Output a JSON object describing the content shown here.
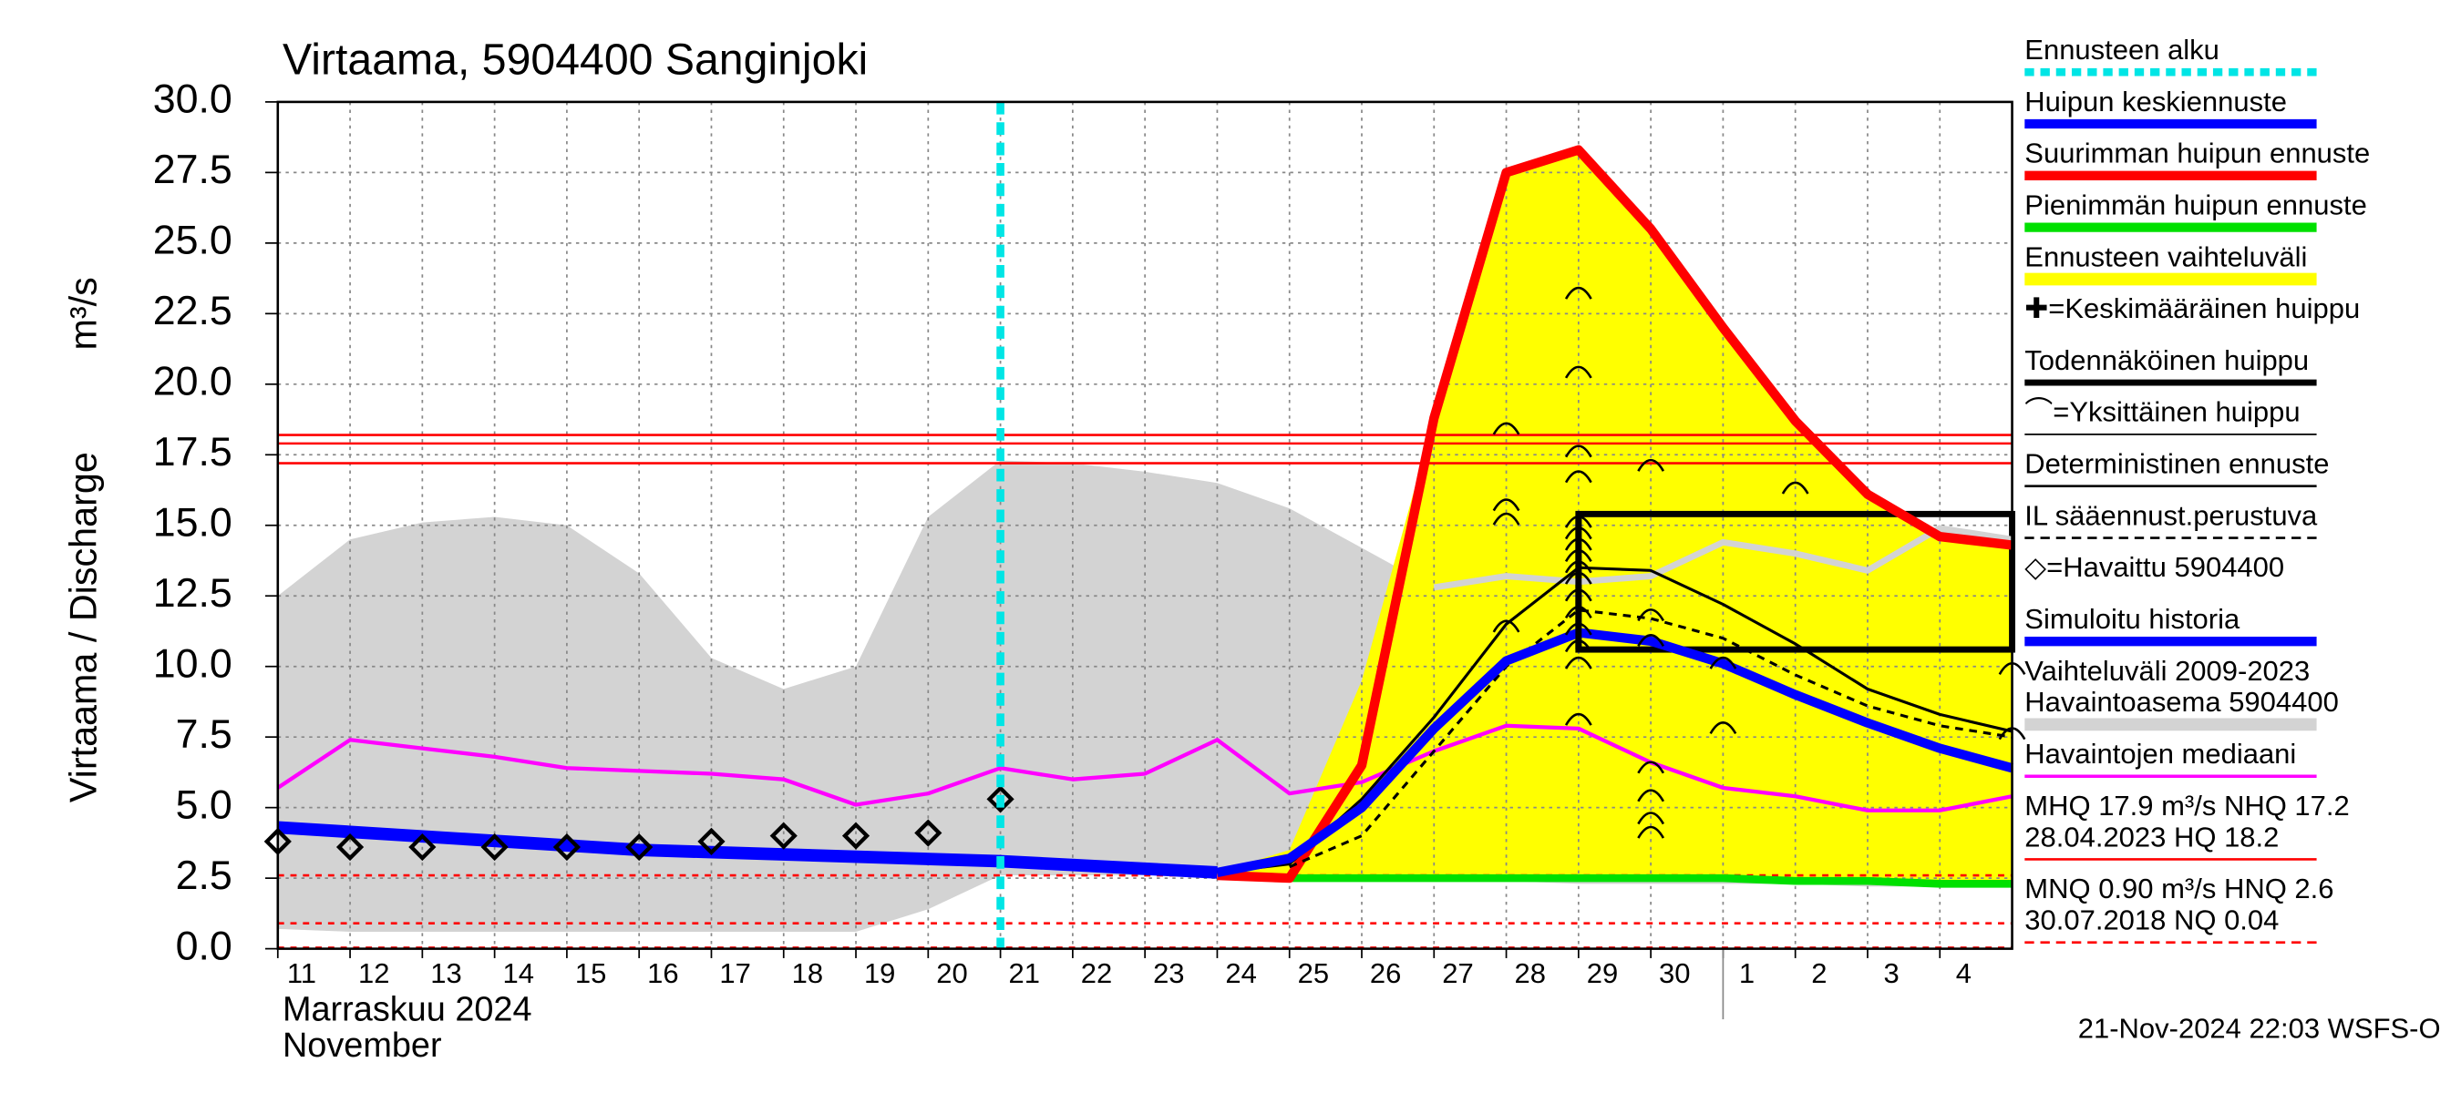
{
  "chart_data": {
    "type": "line",
    "title": "Virtaama, 5904400 Sanginjoki",
    "ylabel": "Virtaama / Discharge",
    "yunit": "m³/s",
    "month_fi": "Marraskuu 2024",
    "month_en": "November",
    "footer": "21-Nov-2024 22:03 WSFS-O",
    "xlim": [
      0,
      24
    ],
    "ylim": [
      0,
      30
    ],
    "grid": true,
    "yticks": [
      {
        "value": 0,
        "label": "0.0"
      },
      2.5,
      {
        "value": 5,
        "label": "5.0"
      },
      7.5,
      {
        "value": 10,
        "label": "10.0"
      },
      12.5,
      {
        "value": 15,
        "label": "15.0"
      },
      17.5,
      {
        "value": 20,
        "label": "20.0"
      },
      22.5,
      {
        "value": 25,
        "label": "25.0"
      },
      27.5,
      {
        "value": 30,
        "label": "30.0"
      }
    ],
    "xticks": [
      {
        "value": 0,
        "label": "11"
      },
      {
        "value": 1,
        "label": "12"
      },
      {
        "value": 2,
        "label": "13"
      },
      {
        "value": 3,
        "label": "14"
      },
      {
        "value": 4,
        "label": "15"
      },
      {
        "value": 5,
        "label": "16"
      },
      {
        "value": 6,
        "label": "17"
      },
      {
        "value": 7,
        "label": "18"
      },
      {
        "value": 8,
        "label": "19"
      },
      {
        "value": 9,
        "label": "20"
      },
      {
        "value": 10,
        "label": "21"
      },
      {
        "value": 11,
        "label": "22"
      },
      {
        "value": 12,
        "label": "23"
      },
      {
        "value": 13,
        "label": "24"
      },
      {
        "value": 14,
        "label": "25"
      },
      {
        "value": 15,
        "label": "26"
      },
      {
        "value": 16,
        "label": "27"
      },
      {
        "value": 17,
        "label": "28"
      },
      {
        "value": 18,
        "label": "29"
      },
      {
        "value": 19,
        "label": "30"
      },
      {
        "value": 20,
        "label": "1"
      },
      {
        "value": 21,
        "label": "2"
      },
      {
        "value": 22,
        "label": "3"
      },
      {
        "value": 23,
        "label": "4"
      }
    ],
    "month_break": 20,
    "forecast_start": 10,
    "forecast_start_color": "#00e5e5",
    "series": [
      {
        "kind": "band",
        "color": "#d3d3d3",
        "x": [
          0,
          1,
          2,
          3,
          4,
          5,
          6,
          7,
          8,
          9,
          10,
          11,
          12,
          13,
          14,
          15,
          16,
          17,
          18,
          19,
          20,
          21,
          22,
          23,
          24
        ],
        "upper": [
          12.5,
          14.5,
          15.1,
          15.3,
          15.0,
          13.3,
          10.3,
          9.2,
          10.0,
          15.3,
          17.3,
          17.2,
          16.9,
          16.5,
          15.6,
          14.2,
          12.8,
          13.2,
          13.0,
          13.2,
          14.4,
          14.0,
          13.4,
          14.9,
          14.5
        ],
        "lower": [
          0.7,
          0.6,
          0.6,
          0.6,
          0.6,
          0.6,
          0.6,
          0.6,
          0.6,
          1.4,
          2.6,
          2.6,
          2.6,
          2.6,
          2.6,
          2.5,
          2.5,
          2.4,
          2.3,
          2.3,
          2.3,
          2.3,
          2.2,
          2.2,
          2.2
        ]
      },
      {
        "kind": "band",
        "color": "#ffff00",
        "x": [
          13,
          14,
          15,
          16,
          17,
          18,
          19,
          20,
          21,
          22,
          23,
          24
        ],
        "upper": [
          2.7,
          3.5,
          9.5,
          18.8,
          27.5,
          28.3,
          25.5,
          22.0,
          18.7,
          16.1,
          14.6,
          14.3
        ],
        "lower": [
          2.6,
          2.5,
          2.5,
          2.5,
          2.5,
          2.5,
          2.5,
          2.5,
          2.4,
          2.4,
          2.3,
          2.3
        ]
      },
      {
        "kind": "line",
        "color": "#d3d3d3",
        "width": 4,
        "x": [
          16,
          17,
          18,
          19,
          20,
          21,
          22,
          23,
          24
        ],
        "values": [
          12.8,
          13.2,
          13.0,
          13.2,
          14.4,
          14.0,
          13.4,
          14.9,
          14.5
        ]
      },
      {
        "kind": "line",
        "color": "#ff00ff",
        "width": 2.5,
        "x": [
          0,
          1,
          2,
          3,
          4,
          5,
          6,
          7,
          8,
          9,
          10,
          11,
          12,
          13,
          14,
          15,
          16,
          17,
          18,
          19,
          20,
          21,
          22,
          23,
          24
        ],
        "values": [
          5.7,
          7.4,
          7.1,
          6.8,
          6.4,
          6.3,
          6.2,
          6.0,
          5.1,
          5.5,
          6.4,
          6.0,
          6.2,
          7.4,
          5.5,
          5.9,
          7.0,
          7.9,
          7.8,
          6.6,
          5.7,
          5.4,
          4.9,
          4.9,
          5.4
        ]
      },
      {
        "kind": "line",
        "color": "#00e000",
        "width": 5,
        "x": [
          14,
          15,
          16,
          17,
          18,
          19,
          20,
          21,
          22,
          23,
          24
        ],
        "values": [
          2.5,
          2.5,
          2.5,
          2.5,
          2.5,
          2.5,
          2.5,
          2.4,
          2.4,
          2.3,
          2.3
        ]
      },
      {
        "kind": "line",
        "color": "#0000ff",
        "width": 8,
        "x": [
          0,
          5,
          10,
          13
        ],
        "values": [
          4.3,
          3.5,
          3.1,
          2.7
        ]
      },
      {
        "kind": "line",
        "color": "#ff0000",
        "width": 6,
        "x": [
          13,
          14,
          15,
          16,
          17,
          18,
          19,
          20,
          21,
          22,
          23,
          24
        ],
        "values": [
          2.6,
          2.5,
          6.5,
          18.8,
          27.5,
          28.3,
          25.5,
          22.0,
          18.7,
          16.1,
          14.6,
          14.3
        ]
      },
      {
        "kind": "line",
        "color": "#000000",
        "width": 1.8,
        "x": [
          13,
          14,
          15,
          16,
          17,
          18,
          19,
          20,
          21,
          22,
          23,
          24
        ],
        "values": [
          2.7,
          3.0,
          5.3,
          8.2,
          11.5,
          13.5,
          13.4,
          12.2,
          10.8,
          9.2,
          8.3,
          7.7
        ]
      },
      {
        "kind": "line",
        "color": "#000000",
        "width": 1.8,
        "dash": true,
        "x": [
          14,
          15,
          16,
          17,
          18,
          19,
          20,
          21,
          22,
          23,
          24
        ],
        "values": [
          2.9,
          4.0,
          7.0,
          10.0,
          12.0,
          11.7,
          11.0,
          9.7,
          8.6,
          7.9,
          7.5
        ]
      },
      {
        "kind": "line",
        "color": "#0000ff",
        "width": 6,
        "x": [
          13,
          14,
          15,
          16,
          17,
          18,
          19,
          20,
          21,
          22,
          23,
          24
        ],
        "values": [
          2.7,
          3.2,
          5.0,
          7.8,
          10.2,
          11.2,
          10.9,
          10.1,
          9.0,
          8.0,
          7.1,
          6.4
        ]
      },
      {
        "kind": "markers",
        "marker": "arc",
        "color": "#000000",
        "x": [
          17,
          17,
          17,
          17,
          18,
          18,
          18,
          18,
          18,
          18,
          18,
          18,
          18,
          18,
          18,
          18,
          18,
          18,
          18,
          18,
          19,
          19,
          19,
          19,
          19,
          19,
          19,
          20,
          20,
          21,
          24,
          24
        ],
        "values": [
          18.5,
          15.8,
          15.3,
          11.5,
          23.3,
          20.5,
          17.7,
          16.8,
          15.2,
          14.8,
          14.4,
          14.0,
          13.6,
          13.2,
          12.6,
          12.0,
          11.4,
          10.8,
          10.2,
          8.2,
          17.2,
          11.9,
          11.0,
          6.5,
          5.5,
          4.7,
          4.2,
          10.2,
          7.9,
          16.4,
          10.0,
          7.7
        ]
      },
      {
        "kind": "markers",
        "marker": "diamond",
        "color": "#000000",
        "x": [
          0,
          1,
          2,
          3,
          4,
          5,
          6,
          7,
          8,
          9,
          10
        ],
        "values": [
          3.8,
          3.6,
          3.6,
          3.6,
          3.6,
          3.6,
          3.8,
          4.0,
          4.0,
          4.1,
          5.3
        ]
      }
    ],
    "probable_peak": {
      "x": 18,
      "range": [
        10.6,
        15.3
      ]
    },
    "peak_box": {
      "x": [
        18,
        24
      ],
      "y": [
        10.6,
        15.4
      ]
    },
    "hlines": [
      {
        "color": "#ff0000",
        "values": [
          18.2,
          17.9,
          17.2
        ]
      },
      {
        "color": "#ff0000",
        "dash": true,
        "values": [
          2.6,
          0.9,
          0.04
        ]
      }
    ],
    "legend": [
      {
        "lines": [
          "Ennusteen alku"
        ],
        "color": "#00e5e5",
        "width": 5,
        "dash": true
      },
      {
        "lines": [
          "Huipun keskiennuste"
        ],
        "color": "#0000ff",
        "width": 6
      },
      {
        "lines": [
          "Suurimman huipun ennuste"
        ],
        "color": "#ff0000",
        "width": 6
      },
      {
        "lines": [
          "Pienimmän huipun ennuste"
        ],
        "color": "#00e000",
        "width": 6
      },
      {
        "lines": [
          "Ennusteen vaihteluväli"
        ],
        "color": "#ffff00",
        "width": 8
      },
      {
        "lines": [
          "✚=Keskimääräinen huippu"
        ],
        "color": "#000000",
        "width": 0
      },
      {
        "lines": [
          "Todennäköinen huippu"
        ],
        "color": "#000000",
        "width": 4
      },
      {
        "lines": [
          "⌒=Yksittäinen huippu"
        ],
        "color": "#000000",
        "width": 1
      },
      {
        "lines": [
          "Deterministinen ennuste"
        ],
        "color": "#000000",
        "width": 1.5
      },
      {
        "lines": [
          "IL sääennust.perustuva"
        ],
        "color": "#000000",
        "width": 1.5,
        "dash": true
      },
      {
        "lines": [
          "◇=Havaittu 5904400"
        ],
        "color": "#000000",
        "width": 0
      },
      {
        "lines": [
          "Simuloitu historia"
        ],
        "color": "#0000ff",
        "width": 6
      },
      {
        "lines": [
          "Vaihteluväli 2009-2023",
          " Havaintoasema 5904400"
        ],
        "color": "#d3d3d3",
        "width": 8
      },
      {
        "lines": [
          "Havaintojen mediaani"
        ],
        "color": "#ff00ff",
        "width": 2
      },
      {
        "lines": [
          "MHQ 17.9 m³/s NHQ 17.2",
          "28.04.2023 HQ 18.2"
        ],
        "color": "#ff0000",
        "width": 1.5
      },
      {
        "lines": [
          "MNQ 0.90 m³/s HNQ  2.6",
          "30.07.2018 NQ 0.04"
        ],
        "color": "#ff0000",
        "width": 1.5,
        "dash": true
      }
    ]
  }
}
